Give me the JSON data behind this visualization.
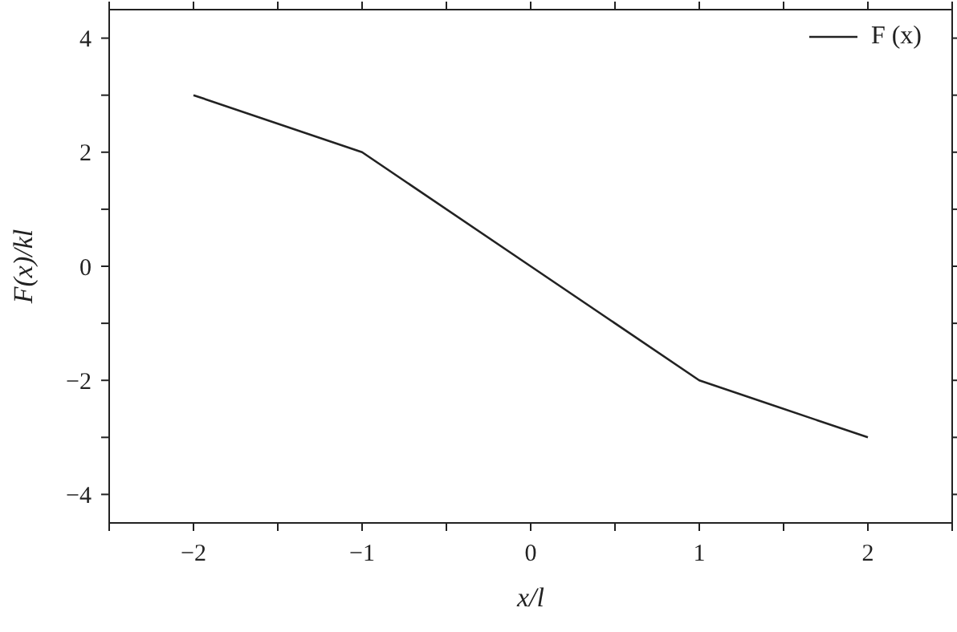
{
  "chart_data": {
    "type": "line",
    "xlabel": "x/l",
    "ylabel": "F(x)/kl",
    "x": [
      -2,
      -1,
      0,
      1,
      2
    ],
    "series": [
      {
        "name": "F (x)",
        "color": "#222222",
        "values": [
          3,
          2,
          0,
          -2,
          -3
        ]
      }
    ],
    "xlim": [
      -2.5,
      2.5
    ],
    "xticks": [
      {
        "value": -2.5,
        "label": null
      },
      {
        "value": -2,
        "label": "−2"
      },
      {
        "value": -1.5,
        "label": null
      },
      {
        "value": -1,
        "label": "−1"
      },
      {
        "value": -0.5,
        "label": null
      },
      0,
      {
        "value": 0.5,
        "label": null
      },
      1,
      {
        "value": 1.5,
        "label": null
      },
      2,
      {
        "value": 2.5,
        "label": null
      }
    ],
    "ylim": [
      -4.5,
      4.5
    ],
    "yticks": [
      {
        "value": -4,
        "label": "−4"
      },
      {
        "value": -3,
        "label": null
      },
      {
        "value": -2,
        "label": "−2"
      },
      {
        "value": -1,
        "label": null
      },
      0,
      {
        "value": 1,
        "label": null
      },
      2,
      {
        "value": 3,
        "label": null
      },
      4
    ],
    "grid": false,
    "legend": "top right",
    "marker": "none",
    "line_style": "solid"
  }
}
